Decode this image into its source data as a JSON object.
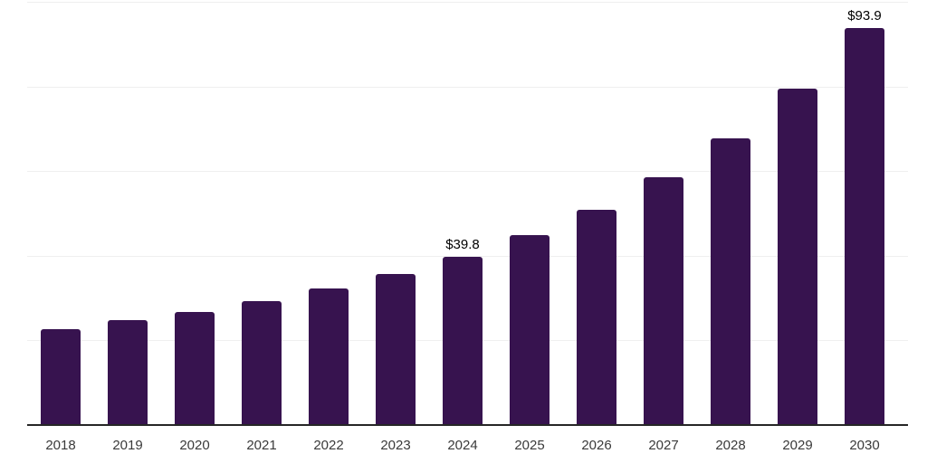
{
  "chart_data": {
    "type": "bar",
    "title": "",
    "xlabel": "",
    "ylabel": "",
    "categories": [
      "2018",
      "2019",
      "2020",
      "2021",
      "2022",
      "2023",
      "2024",
      "2025",
      "2026",
      "2027",
      "2028",
      "2029",
      "2030"
    ],
    "values": [
      22.6,
      24.8,
      26.7,
      29.3,
      32.2,
      35.7,
      39.8,
      44.9,
      50.8,
      58.6,
      67.7,
      79.5,
      93.9
    ],
    "data_labels": {
      "2024": "$39.8",
      "2030": "$93.9"
    },
    "ylim": [
      0,
      100
    ],
    "gridline_step": 20,
    "grid": "horizontal-only",
    "legend": "none",
    "colors": {
      "bar": "#37134F",
      "axis_line": "#262626",
      "gridline": "#EFEFEF",
      "tick_label": "#3A3A3A",
      "data_label": "#000000",
      "background": "#FFFFFF"
    }
  }
}
